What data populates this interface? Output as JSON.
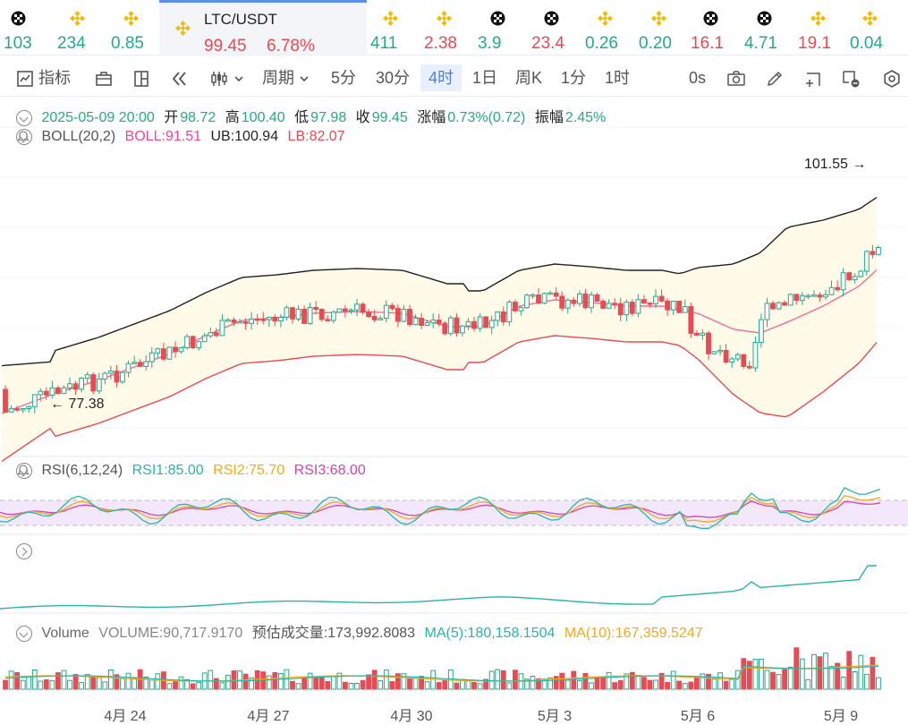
{
  "ticker": {
    "items": [
      {
        "value": "103",
        "dir": "up",
        "icon": "grid-coin-icon"
      },
      {
        "value": "234",
        "dir": "up",
        "icon": "bnb-icon"
      },
      {
        "value": "0.85",
        "dir": "up",
        "icon": "bnb-icon"
      },
      {
        "value": "411",
        "dir": "up",
        "icon": "bnb-icon"
      },
      {
        "value": "2.38",
        "dir": "down",
        "icon": "bnb-icon"
      },
      {
        "value": "3.9",
        "dir": "up",
        "icon": "grid-coin-icon"
      },
      {
        "value": "23.4",
        "dir": "down",
        "icon": "grid-coin-icon"
      },
      {
        "value": "0.26",
        "dir": "up",
        "icon": "bnb-icon"
      },
      {
        "value": "0.20",
        "dir": "up",
        "icon": "bnb-icon"
      },
      {
        "value": "16.1",
        "dir": "down",
        "icon": "grid-coin-icon"
      },
      {
        "value": "4.71",
        "dir": "up",
        "icon": "grid-coin-icon"
      },
      {
        "value": "19.1",
        "dir": "down",
        "icon": "bnb-icon"
      },
      {
        "value": "0.04",
        "dir": "up",
        "icon": "bnb-icon"
      }
    ],
    "active": {
      "pair": "LTC/USDT",
      "price": "99.45",
      "change": "6.78%",
      "icon": "bnb-icon"
    }
  },
  "toolbar": {
    "indicators": "指标",
    "period": "周期",
    "intervals": [
      "5分",
      "30分",
      "4时",
      "1日",
      "周K",
      "1分",
      "1时"
    ],
    "active_interval": "4时",
    "countdown": "0s"
  },
  "ohlc": {
    "date": "2025-05-09 20:00",
    "open_label": "开",
    "open": "98.72",
    "high_label": "高",
    "high": "100.40",
    "low_label": "低",
    "low": "97.98",
    "close_label": "收",
    "close": "99.45",
    "change_label": "涨幅",
    "change": "0.73%(0.72)",
    "amplitude_label": "振幅",
    "amplitude": "2.45%"
  },
  "boll": {
    "name": "BOLL(20,2)",
    "boll": "BOLL:91.51",
    "ub": "UB:100.94",
    "lb": "LB:82.07"
  },
  "annotations": {
    "high": "101.55",
    "low": "77.38"
  },
  "rsi": {
    "name": "RSI(6,12,24)",
    "rsi1": "RSI1:85.00",
    "rsi2": "RSI2:75.70",
    "rsi3": "RSI3:68.00"
  },
  "volume": {
    "name": "Volume",
    "value": "VOLUME:90,717.9170",
    "estimate": "预估成交量:173,992.8083",
    "ma5": "MA(5):180,158.1504",
    "ma10": "MA(10):167,359.5247"
  },
  "colors": {
    "up": "#23a98b",
    "down": "#e94a53",
    "upper": "#222222",
    "mid": "#f06e9e",
    "lower": "#e94a53",
    "accent": "#4c7fe5"
  },
  "chart_data": {
    "type": "candlestick",
    "interval": "4h",
    "x_labels": [
      "4月 24",
      "4月 27",
      "4月 30",
      "5月 3",
      "5月 6",
      "5月 9"
    ],
    "price_range": [
      77.38,
      101.55
    ],
    "last": {
      "open": 98.72,
      "high": 100.4,
      "low": 97.98,
      "close": 99.45
    },
    "boll_last": {
      "boll": 91.51,
      "ub": 100.94,
      "lb": 82.07
    },
    "rsi_last": {
      "rsi1": 85.0,
      "rsi2": 75.7,
      "rsi3": 68.0
    }
  }
}
